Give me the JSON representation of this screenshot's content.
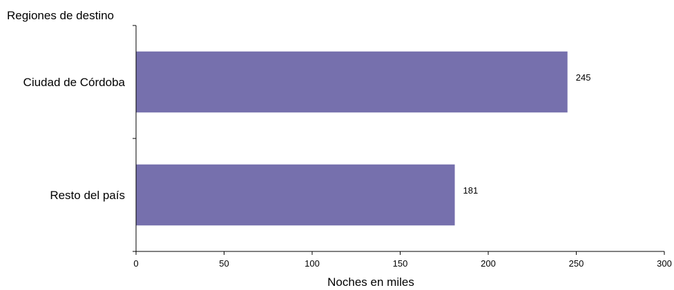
{
  "chart_data": {
    "type": "bar",
    "orientation": "horizontal",
    "title": "",
    "ylabel": "Regiones  de destino",
    "xlabel": "Noches  en miles",
    "categories": [
      "Ciudad de Córdoba",
      "Resto del país"
    ],
    "values": [
      245,
      181
    ],
    "value_labels": [
      "245",
      "181"
    ],
    "xlim": [
      0,
      300
    ],
    "xticks": [
      0,
      50,
      100,
      150,
      200,
      250,
      300
    ],
    "xtick_labels": [
      "0",
      "50",
      "100",
      "150",
      "200",
      "250",
      "300"
    ],
    "grid": false,
    "legend": "none",
    "bar_color": "#7670AD"
  }
}
